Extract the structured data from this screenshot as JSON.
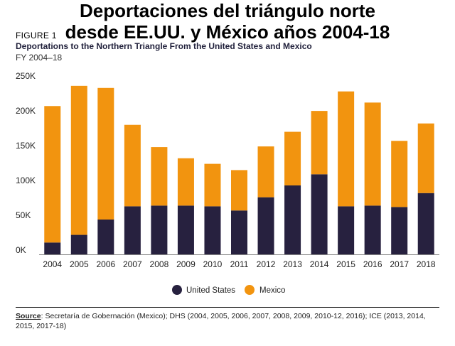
{
  "title_es_line1": "Deportaciones del triángulo norte",
  "title_es_line2": "desde EE.UU. y México años 2004-18",
  "figure_label": "FIGURE 1",
  "source_key": "Source",
  "source_text": ": Secretaría de Gobernación (Mexico); DHS (2004, 2005, 2006, 2007, 2008, 2009, 2010-12, 2016); ICE (2013, 2014, 2015, 2017-18)",
  "colors": {
    "us": "#27213f",
    "mexico": "#f2940f"
  },
  "chart_data": {
    "type": "bar",
    "stacked": true,
    "title": "Deportations to the Northern Triangle From the United States and Mexico",
    "subtitle": "FY 2004–18",
    "categories": [
      "2004",
      "2005",
      "2006",
      "2007",
      "2008",
      "2009",
      "2010",
      "2011",
      "2012",
      "2013",
      "2014",
      "2015",
      "2016",
      "2017",
      "2018"
    ],
    "series": [
      {
        "name": "United States",
        "values": [
          17000,
          28000,
          50000,
          69000,
          70000,
          70000,
          69000,
          63000,
          82000,
          99000,
          115000,
          69000,
          70000,
          68000,
          88000
        ]
      },
      {
        "name": "Mexico",
        "values": [
          196000,
          214000,
          189000,
          117000,
          84000,
          68000,
          61000,
          58000,
          73000,
          77000,
          91000,
          165000,
          148000,
          95000,
          100000
        ]
      }
    ],
    "yticks": [
      "0K",
      "50K",
      "100K",
      "150K",
      "200K",
      "250K"
    ],
    "ylim": [
      0,
      250000
    ],
    "grid": false,
    "legend": "bottom-center"
  }
}
